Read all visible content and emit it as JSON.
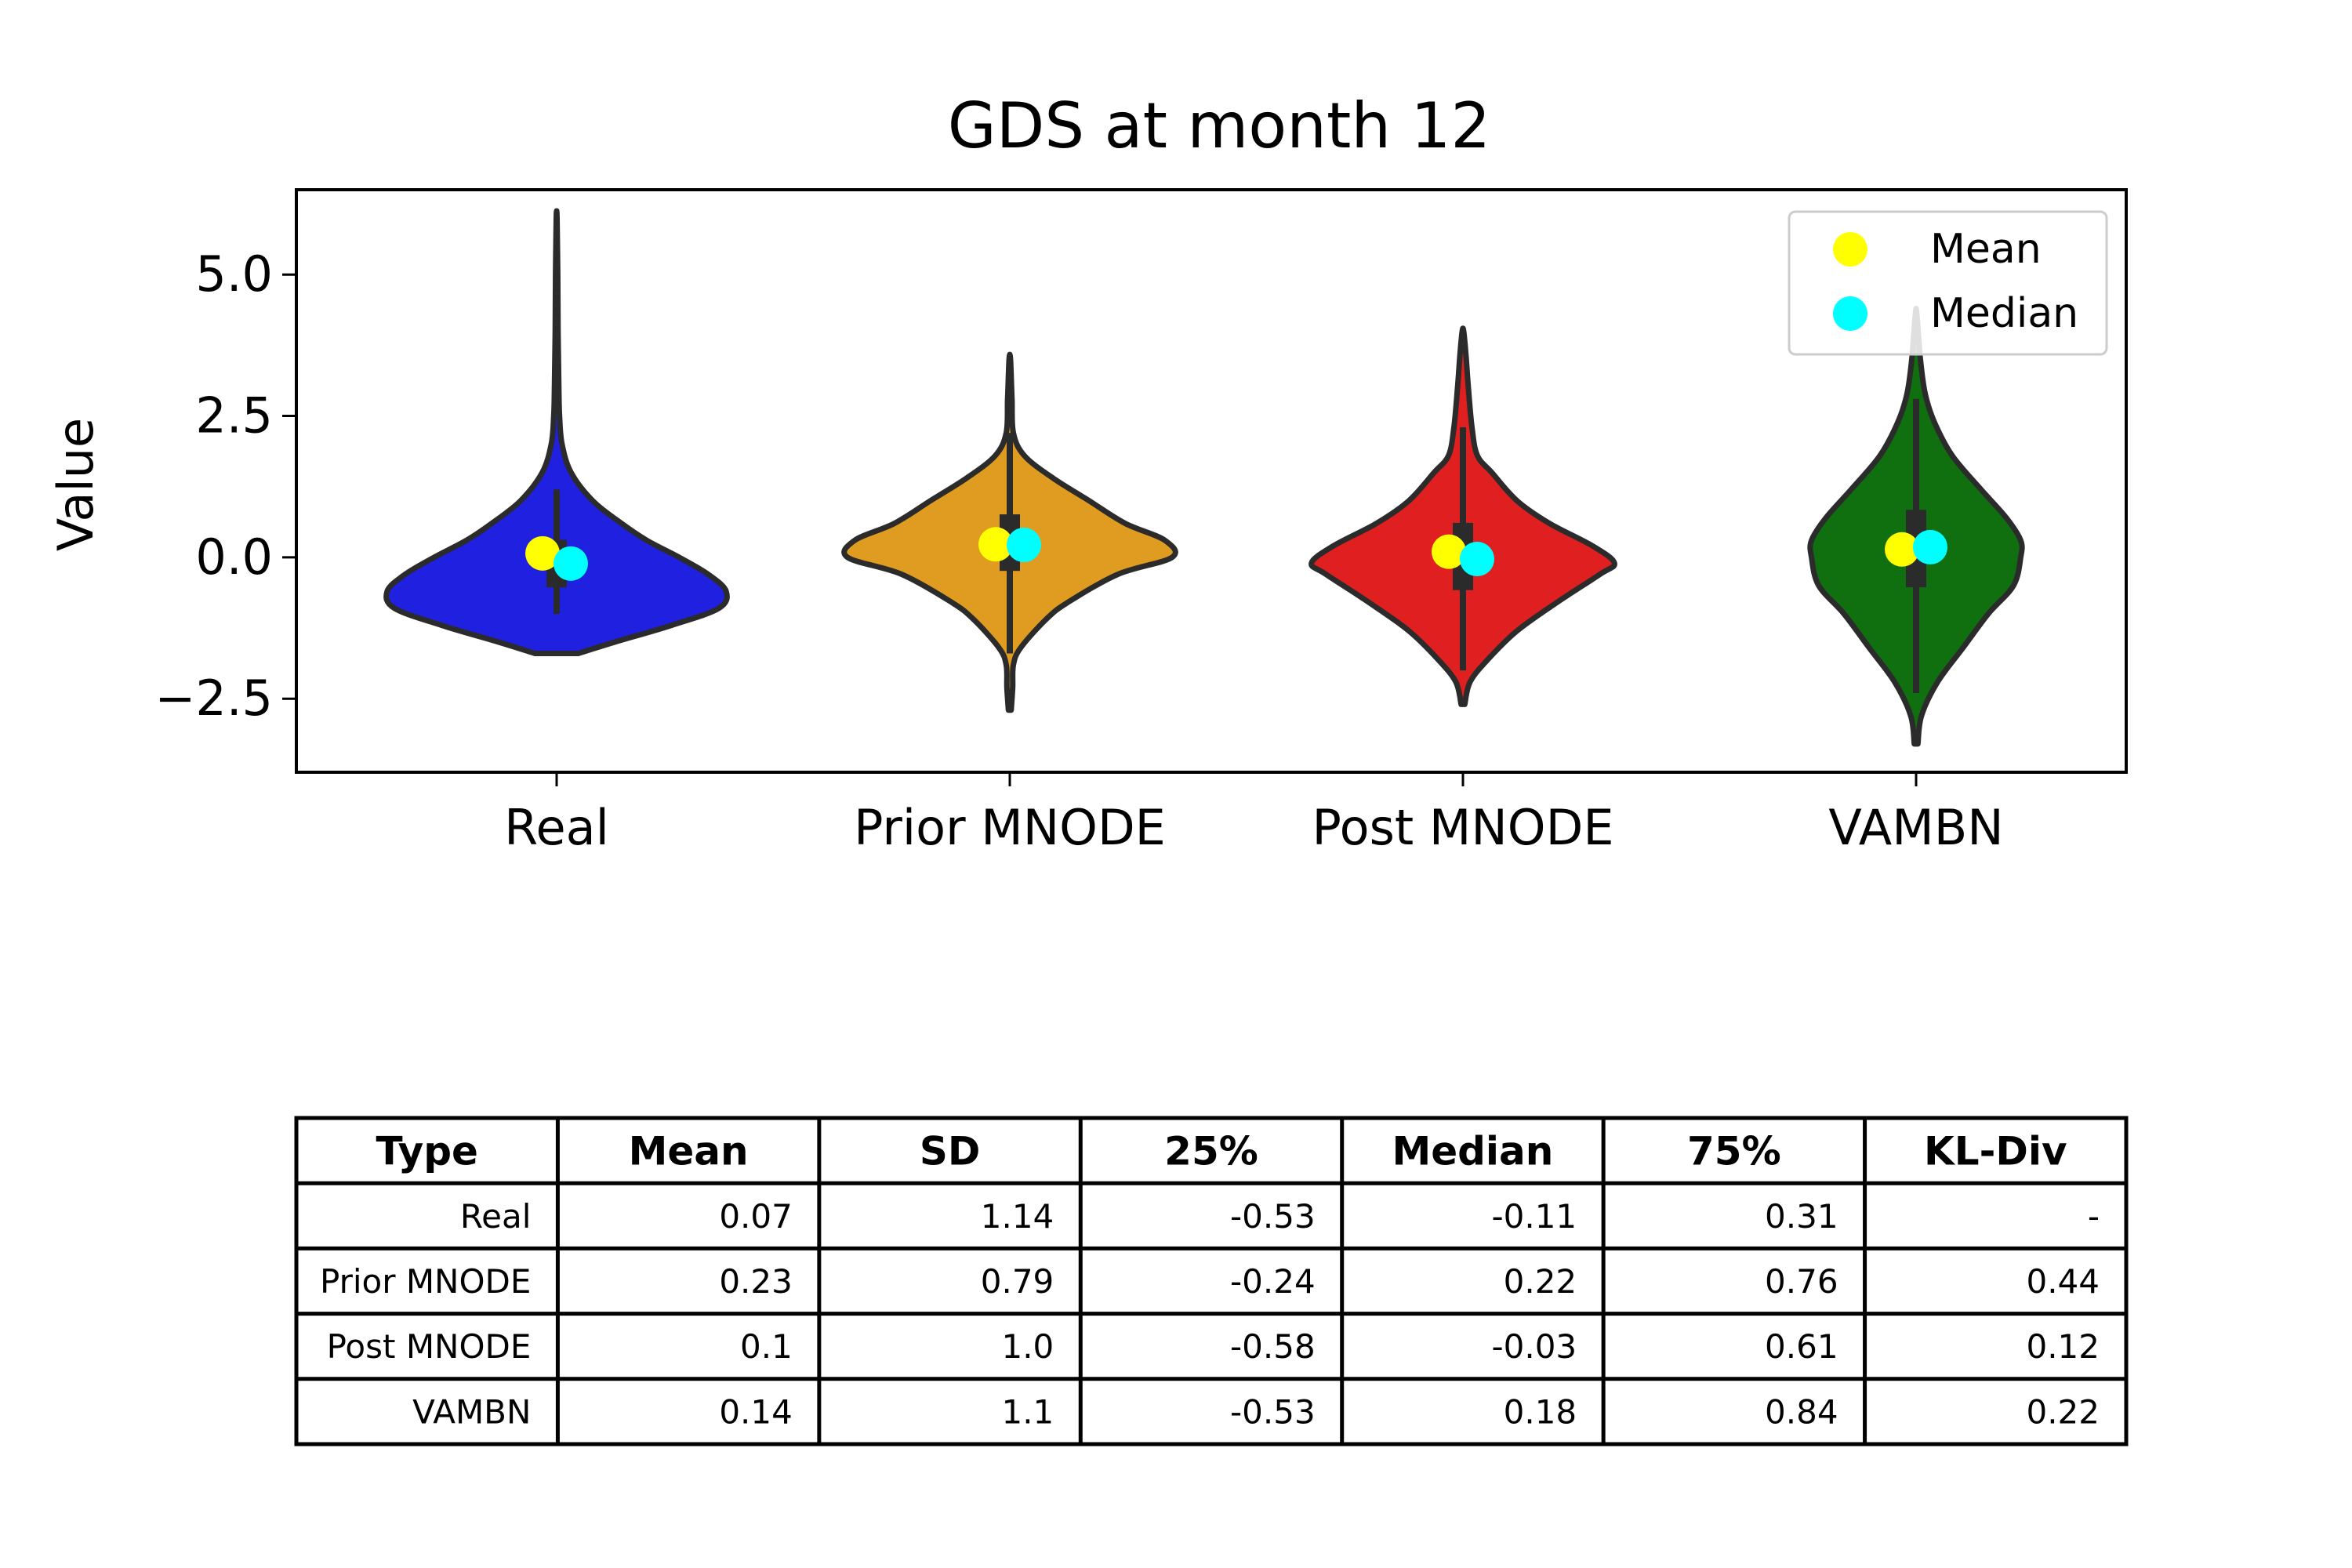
{
  "chart_data": {
    "type": "violin",
    "title": "GDS at month 12",
    "xlabel": "",
    "ylabel": "Value",
    "ylim": [
      -3.8,
      6.5
    ],
    "yticks": [
      "5.0",
      "2.5",
      "0.0",
      "−2.5"
    ],
    "ytick_values": [
      5.0,
      2.5,
      0.0,
      -2.5
    ],
    "grid": false,
    "legend": {
      "placement": "top-right",
      "entries": [
        {
          "label": "Mean",
          "color": "#ffff00"
        },
        {
          "label": "Median",
          "color": "#00ffff"
        }
      ]
    },
    "categories": [
      "Real",
      "Prior MNODE",
      "Post MNODE",
      "VAMBN"
    ],
    "series": [
      {
        "color": "#2020e0",
        "min": -1.7,
        "max": 6.0,
        "q1": -0.53,
        "q3": 0.31,
        "whisker_low": -1.0,
        "whisker_high": 1.2,
        "mean": 0.07,
        "median": -0.11,
        "profile": [
          [
            -1.7,
            0.06
          ],
          [
            -1.5,
            0.16
          ],
          [
            -1.2,
            0.32
          ],
          [
            -0.9,
            0.45
          ],
          [
            -0.6,
            0.47
          ],
          [
            -0.3,
            0.42
          ],
          [
            0.0,
            0.34
          ],
          [
            0.3,
            0.25
          ],
          [
            0.6,
            0.18
          ],
          [
            1.0,
            0.1
          ],
          [
            1.5,
            0.04
          ],
          [
            2.0,
            0.015
          ],
          [
            2.5,
            0.008
          ],
          [
            3.0,
            0.006
          ],
          [
            4.0,
            0.004
          ],
          [
            5.0,
            0.003
          ],
          [
            6.0,
            0.001
          ]
        ]
      },
      {
        "color": "#e09c20",
        "min": -2.7,
        "max": 3.5,
        "q1": -0.24,
        "q3": 0.76,
        "whisker_low": -1.7,
        "whisker_high": 2.2,
        "mean": 0.23,
        "median": 0.22,
        "profile": [
          [
            -2.7,
            0.004
          ],
          [
            -2.3,
            0.008
          ],
          [
            -1.9,
            0.01
          ],
          [
            -1.6,
            0.03
          ],
          [
            -1.1,
            0.1
          ],
          [
            -0.8,
            0.16
          ],
          [
            -0.3,
            0.3
          ],
          [
            0.0,
            0.45
          ],
          [
            0.3,
            0.43
          ],
          [
            0.6,
            0.32
          ],
          [
            1.0,
            0.22
          ],
          [
            1.4,
            0.12
          ],
          [
            1.8,
            0.04
          ],
          [
            2.2,
            0.01
          ],
          [
            2.8,
            0.006
          ],
          [
            3.5,
            0.002
          ]
        ]
      },
      {
        "color": "#e02020",
        "min": -2.6,
        "max": 4.0,
        "q1": -0.58,
        "q3": 0.61,
        "whisker_low": -2.0,
        "whisker_high": 2.3,
        "mean": 0.1,
        "median": -0.03,
        "profile": [
          [
            -2.6,
            0.005
          ],
          [
            -2.2,
            0.02
          ],
          [
            -1.8,
            0.07
          ],
          [
            -1.3,
            0.15
          ],
          [
            -0.8,
            0.26
          ],
          [
            -0.3,
            0.38
          ],
          [
            -0.1,
            0.42
          ],
          [
            0.2,
            0.36
          ],
          [
            0.6,
            0.24
          ],
          [
            1.0,
            0.15
          ],
          [
            1.5,
            0.08
          ],
          [
            1.8,
            0.04
          ],
          [
            2.3,
            0.025
          ],
          [
            3.0,
            0.015
          ],
          [
            3.6,
            0.008
          ],
          [
            4.0,
            0.002
          ]
        ]
      },
      {
        "color": "#107010",
        "min": -3.3,
        "max": 4.3,
        "q1": -0.53,
        "q3": 0.84,
        "whisker_low": -2.4,
        "whisker_high": 2.8,
        "mean": 0.14,
        "median": 0.18,
        "profile": [
          [
            -3.3,
            0.005
          ],
          [
            -2.8,
            0.015
          ],
          [
            -2.2,
            0.06
          ],
          [
            -1.6,
            0.13
          ],
          [
            -1.0,
            0.2
          ],
          [
            -0.5,
            0.27
          ],
          [
            0.0,
            0.29
          ],
          [
            0.3,
            0.29
          ],
          [
            0.7,
            0.25
          ],
          [
            1.2,
            0.18
          ],
          [
            1.8,
            0.1
          ],
          [
            2.4,
            0.05
          ],
          [
            2.9,
            0.025
          ],
          [
            3.5,
            0.012
          ],
          [
            4.3,
            0.002
          ]
        ]
      }
    ]
  },
  "table": {
    "headers": [
      "Type",
      "Mean",
      "SD",
      "25%",
      "Median",
      "75%",
      "KL-Div"
    ],
    "rows": [
      [
        "Real",
        "0.07",
        "1.14",
        "-0.53",
        "-0.11",
        "0.31",
        "-"
      ],
      [
        "Prior MNODE",
        "0.23",
        "0.79",
        "-0.24",
        "0.22",
        "0.76",
        "0.44"
      ],
      [
        "Post MNODE",
        "0.1",
        "1.0",
        "-0.58",
        "-0.03",
        "0.61",
        "0.12"
      ],
      [
        "VAMBN",
        "0.14",
        "1.1",
        "-0.53",
        "0.18",
        "0.84",
        "0.22"
      ]
    ]
  }
}
